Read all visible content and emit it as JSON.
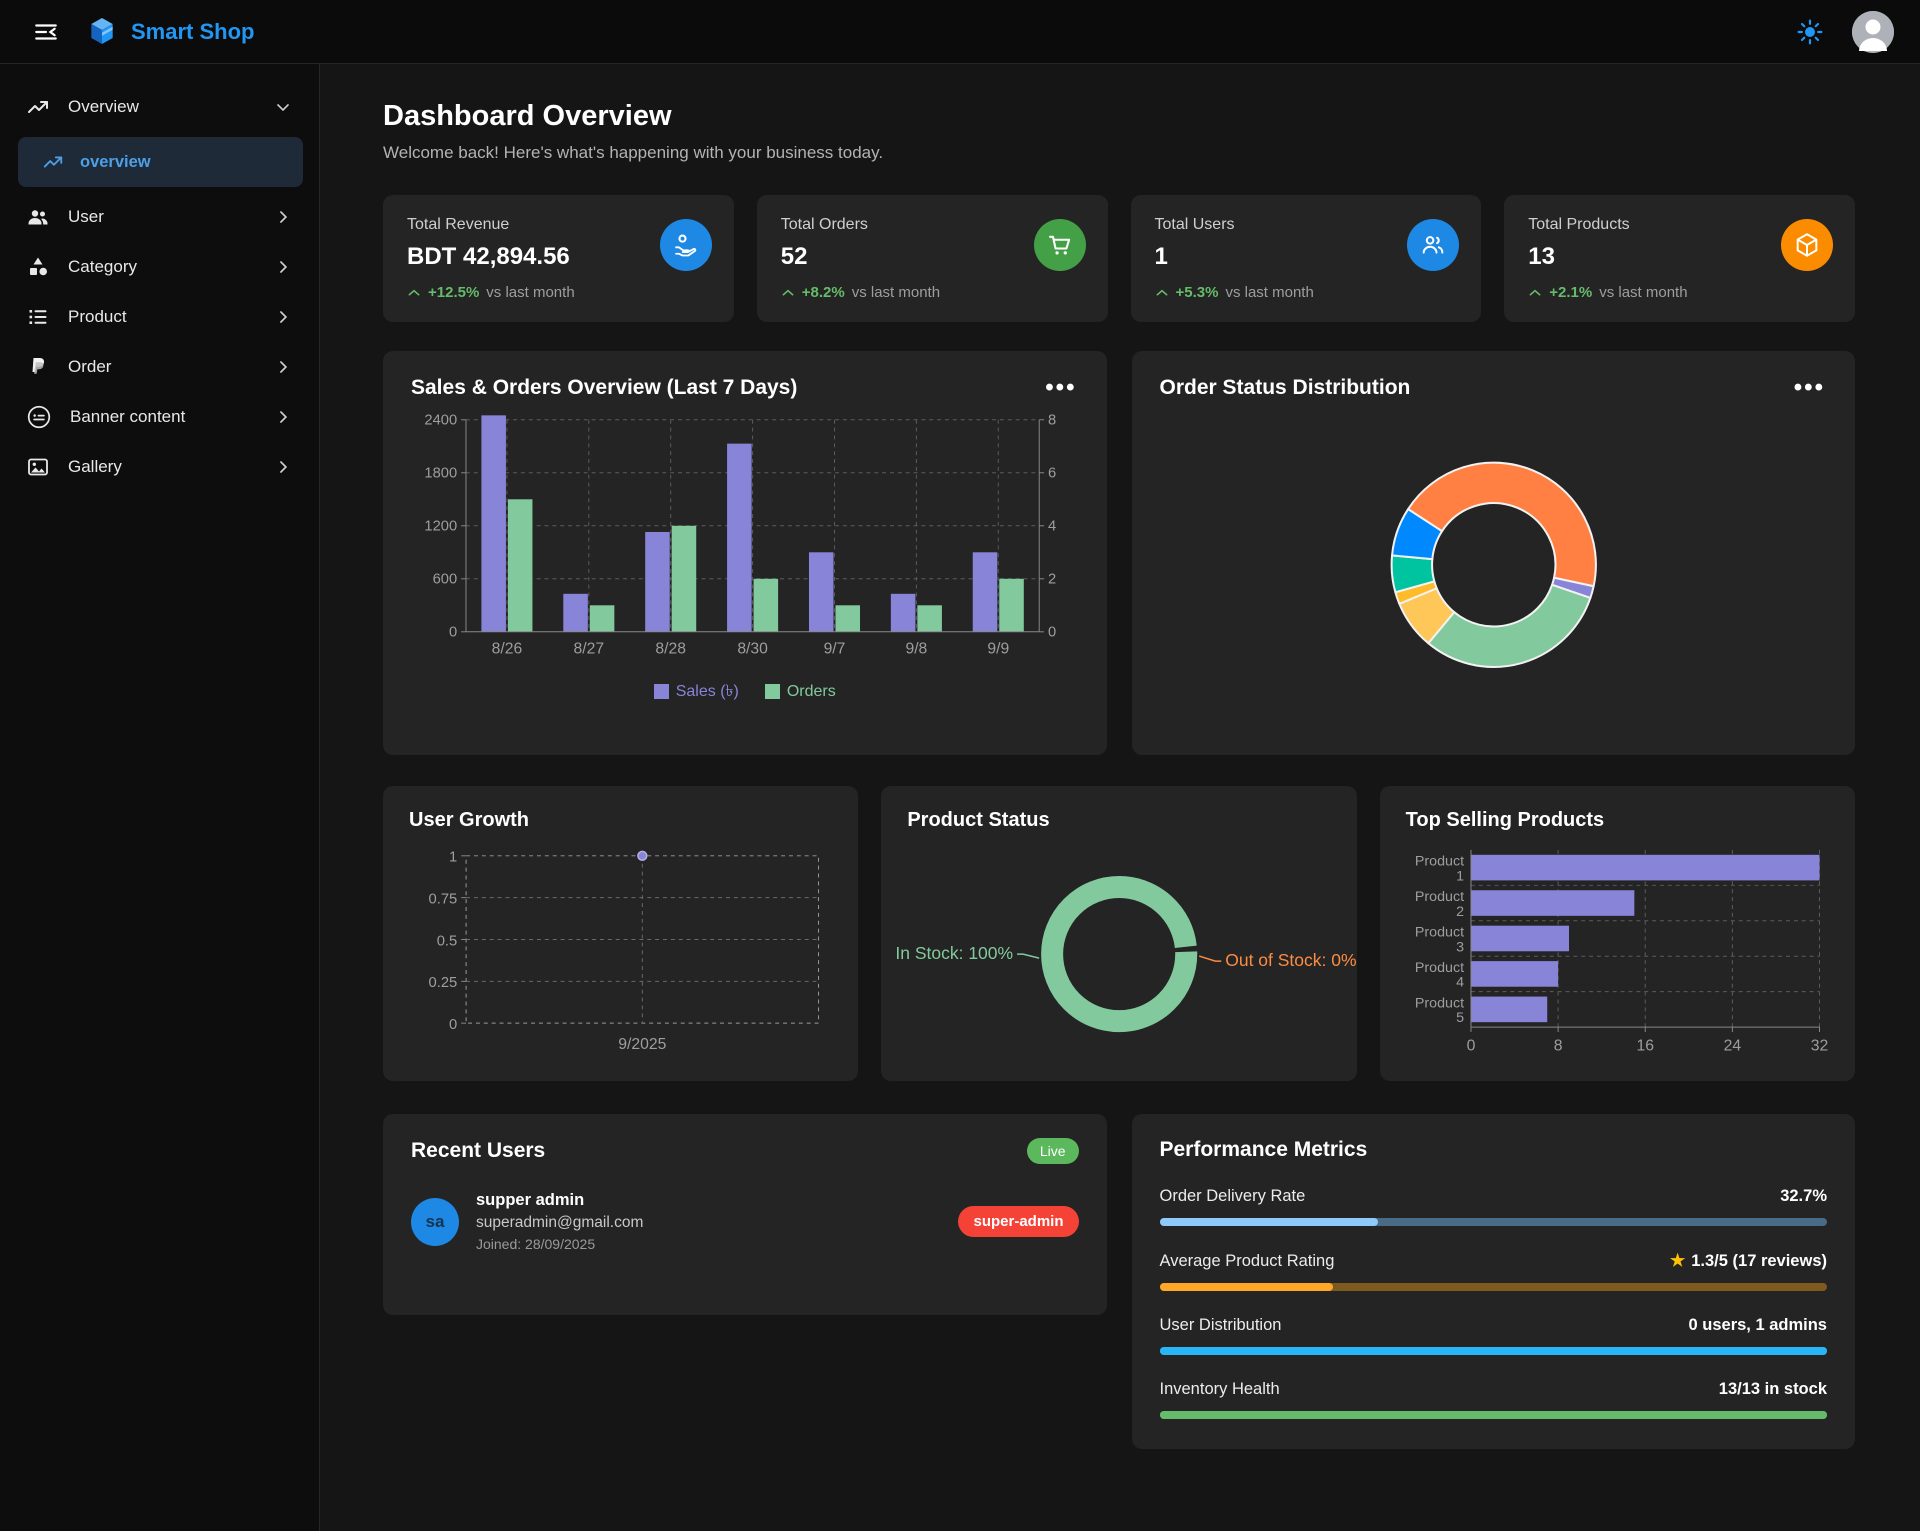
{
  "header": {
    "app_name": "Smart Shop"
  },
  "sidebar": {
    "items": [
      {
        "label": "Overview",
        "expanded": true
      },
      {
        "label": "User"
      },
      {
        "label": "Category"
      },
      {
        "label": "Product"
      },
      {
        "label": "Order"
      },
      {
        "label": "Banner content"
      },
      {
        "label": "Gallery"
      }
    ],
    "submenu": {
      "label": "overview",
      "active": true
    }
  },
  "page": {
    "title": "Dashboard Overview",
    "subtitle": "Welcome back! Here's what's happening with your business today."
  },
  "stats": [
    {
      "label": "Total Revenue",
      "value": "BDT 42,894.56",
      "change": "+12.5%",
      "suffix": "vs last month",
      "icon": "payments-icon",
      "icon_bg": "#1e88e5"
    },
    {
      "label": "Total Orders",
      "value": "52",
      "change": "+8.2%",
      "suffix": "vs last month",
      "icon": "cart-icon",
      "icon_bg": "#43a047"
    },
    {
      "label": "Total Users",
      "value": "1",
      "change": "+5.3%",
      "suffix": "vs last month",
      "icon": "users-icon",
      "icon_bg": "#1e88e5"
    },
    {
      "label": "Total Products",
      "value": "13",
      "change": "+2.1%",
      "suffix": "vs last month",
      "icon": "box-icon",
      "icon_bg": "#fb8c00"
    }
  ],
  "charts": {
    "sales": {
      "title": "Sales & Orders Overview (Last 7 Days)",
      "menu": "...",
      "legend": [
        {
          "label": "Sales (৳)",
          "color": "#8884d8"
        },
        {
          "label": "Orders",
          "color": "#82ca9d"
        }
      ]
    },
    "order_status": {
      "title": "Order Status Distribution",
      "menu": "..."
    },
    "user_growth": {
      "title": "User Growth"
    },
    "product_status": {
      "title": "Product Status"
    },
    "top_products": {
      "title": "Top Selling Products"
    }
  },
  "chart_data": [
    {
      "id": "sales",
      "type": "bar",
      "title": "Sales & Orders Overview (Last 7 Days)",
      "categories": [
        "8/26",
        "8/27",
        "8/28",
        "8/30",
        "9/7",
        "9/8",
        "9/9"
      ],
      "series": [
        {
          "name": "Sales (৳)",
          "axis": "left",
          "color": "#8884d8",
          "values": [
            2450,
            430,
            1130,
            2130,
            900,
            430,
            900
          ]
        },
        {
          "name": "Orders",
          "axis": "right",
          "color": "#82ca9d",
          "values": [
            5,
            1,
            4,
            2,
            1,
            1,
            2
          ]
        }
      ],
      "left_ticks": [
        0,
        600,
        1200,
        1800,
        2400
      ],
      "right_ticks": [
        0,
        2,
        4,
        6,
        8
      ],
      "left_max": 2400,
      "right_max": 8,
      "grid": "dashed",
      "legend_position": "bottom"
    },
    {
      "id": "order_status",
      "type": "pie",
      "title": "Order Status Distribution",
      "start_angle": 303,
      "inner_radius_ratio": 0.6,
      "slices": [
        {
          "color": "#FF8042",
          "pct": 44.2
        },
        {
          "color": "#8884d8",
          "pct": 1.9
        },
        {
          "color": "#82ca9d",
          "pct": 30.8
        },
        {
          "color": "#FFC658",
          "pct": 7.7
        },
        {
          "color": "#FFBB28",
          "pct": 1.9
        },
        {
          "color": "#00C49F",
          "pct": 5.8
        },
        {
          "color": "#0088FE",
          "pct": 7.7
        }
      ]
    },
    {
      "id": "user_growth",
      "type": "line",
      "title": "User Growth",
      "x": [
        "9/2025"
      ],
      "values": [
        1
      ],
      "y_ticks": [
        0,
        0.25,
        0.5,
        0.75,
        1
      ],
      "ylim": [
        0,
        1
      ],
      "color": "#8884d8",
      "grid": "dashed"
    },
    {
      "id": "product_status",
      "type": "pie",
      "title": "Product Status",
      "slices": [
        {
          "label": "In Stock",
          "pct": 100,
          "color": "#82ca9d",
          "callout": "In Stock: 100%"
        },
        {
          "label": "Out of Stock",
          "pct": 0,
          "color": "#fb8c44",
          "callout": "Out of Stock: 0%"
        }
      ]
    },
    {
      "id": "top_products",
      "type": "bar",
      "orientation": "horizontal",
      "title": "Top Selling Products",
      "categories": [
        "Product 1",
        "Product 2",
        "Product 3",
        "Product 4",
        "Product 5"
      ],
      "values": [
        32,
        15,
        9,
        8,
        7
      ],
      "x_ticks": [
        0,
        8,
        16,
        24,
        32
      ],
      "xlim": [
        0,
        32
      ],
      "color": "#8884d8",
      "grid": "dashed"
    }
  ],
  "recent_users": {
    "title": "Recent Users",
    "badge": "Live",
    "users": [
      {
        "initials": "sa",
        "name": "supper admin",
        "email": "superadmin@gmail.com",
        "joined": "Joined: 28/09/2025",
        "role": "super-admin"
      }
    ]
  },
  "performance": {
    "title": "Performance Metrics",
    "metrics": [
      {
        "label": "Order Delivery Rate",
        "value": "32.7%",
        "pct": 32.7,
        "fill": "#90caf9",
        "track": "#4a6b85"
      },
      {
        "label": "Average Product Rating",
        "value": "1.3/5 (17 reviews)",
        "star": "★",
        "pct": 26,
        "fill": "#ffa726",
        "track": "#7d5a1d"
      },
      {
        "label": "User Distribution",
        "value": "0 users, 1 admins",
        "pct": 100,
        "fill": "#29b6f6",
        "track": "#29b6f6"
      },
      {
        "label": "Inventory Health",
        "value": "13/13 in stock",
        "pct": 100,
        "fill": "#66bb6a",
        "track": "#66bb6a"
      }
    ]
  }
}
